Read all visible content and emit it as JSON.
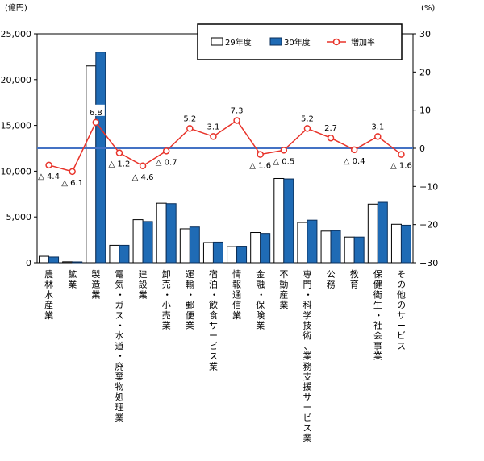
{
  "chart_data": {
    "type": "bar",
    "title": "",
    "left_axis_unit": "(億円)",
    "right_axis_unit": "(%)",
    "ylim": [
      0,
      25000
    ],
    "y2lim": [
      -30,
      30
    ],
    "yticks": [
      "0",
      "5,000",
      "10,000",
      "15,000",
      "20,000",
      "25,000"
    ],
    "y2ticks": [
      "−30",
      "−20",
      "−10",
      "0",
      "10",
      "20",
      "30"
    ],
    "categories": [
      "農林水産業",
      "鉱業",
      "製造業",
      "電気・ガス・水道・廃棄物処理業",
      "建設業",
      "卸売・小売業",
      "運輸・郵便業",
      "宿泊・飲食サービス業",
      "情報通信業",
      "金融・保険業",
      "不動産業",
      "専門・科学技術、業務支援サービス業",
      "公務",
      "教育",
      "保健衛生・社会事業",
      "その他のサービス"
    ],
    "series": [
      {
        "name": "29年度",
        "values": [
          700,
          100,
          21500,
          1900,
          4700,
          6500,
          3700,
          2200,
          1750,
          3300,
          9200,
          4400,
          3450,
          2800,
          6400,
          4200
        ]
      },
      {
        "name": "30年度",
        "values": [
          620,
          90,
          23000,
          1900,
          4500,
          6450,
          3900,
          2250,
          1800,
          3200,
          9150,
          4650,
          3500,
          2800,
          6600,
          4100
        ]
      }
    ],
    "rate_series": {
      "name": "増加率",
      "values": [
        -4.4,
        -6.1,
        6.8,
        -1.2,
        -4.6,
        -0.7,
        5.2,
        3.1,
        7.3,
        -1.6,
        -0.5,
        5.2,
        2.7,
        -0.4,
        3.1,
        -1.6
      ],
      "labels": [
        "△ 4.4",
        "△ 6.1",
        "6.8",
        "△ 1.2",
        "△ 4.6",
        "△ 0.7",
        "5.2",
        "3.1",
        "7.3",
        "△ 1.6",
        "△ 0.5",
        "5.2",
        "2.7",
        "△ 0.4",
        "3.1",
        "△ 1.6"
      ]
    },
    "legend": {
      "placement": "top-right",
      "labels": [
        "29年度",
        "30年度",
        "増加率"
      ]
    },
    "grid": false
  },
  "colors": {
    "series_29": "#ffffff",
    "series_30": "#1f6bb5",
    "rate_line": "#e8332a",
    "zero_line": "#4472c4",
    "axis": "#000000"
  }
}
